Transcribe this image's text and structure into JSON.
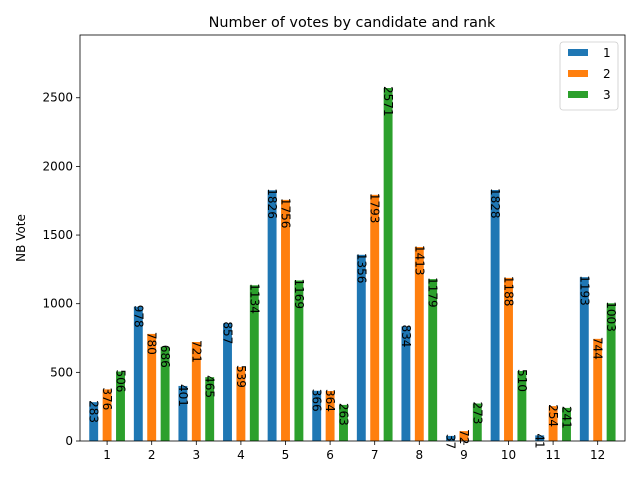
{
  "chart_data": {
    "type": "bar",
    "title": "Number of votes by candidate and rank",
    "xlabel": "",
    "ylabel": "NB Vote",
    "categories": [
      "1",
      "2",
      "3",
      "4",
      "5",
      "6",
      "7",
      "8",
      "9",
      "10",
      "11",
      "12"
    ],
    "series": [
      {
        "name": "1",
        "color": "#1f77b4",
        "values": [
          283,
          978,
          401,
          857,
          1826,
          366,
          1356,
          834,
          37,
          1828,
          41,
          1193
        ]
      },
      {
        "name": "2",
        "color": "#ff7f0e",
        "values": [
          376,
          780,
          721,
          539,
          1756,
          364,
          1793,
          1413,
          72,
          1188,
          254,
          744
        ]
      },
      {
        "name": "3",
        "color": "#2ca02c",
        "values": [
          506,
          686,
          465,
          1134,
          1169,
          263,
          2571,
          1179,
          273,
          510,
          241,
          1003
        ]
      }
    ],
    "ylim": [
      0,
      2957
    ],
    "yticks": [
      0,
      500,
      1000,
      1500,
      2000,
      2500
    ],
    "grid": false,
    "legend_position": "top-right"
  }
}
